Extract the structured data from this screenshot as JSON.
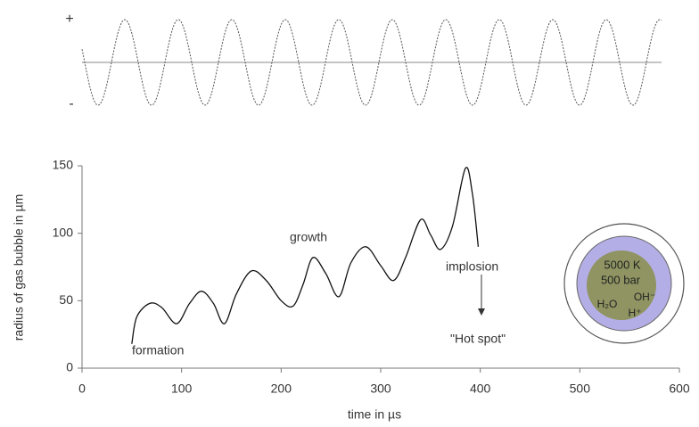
{
  "chart_data": {
    "type": "line",
    "x_label": "time in µs",
    "y_label": "radius of gas bubble in µm",
    "x": [
      50,
      55,
      68,
      80,
      95,
      108,
      120,
      132,
      143,
      155,
      170,
      185,
      200,
      212,
      222,
      232,
      245,
      258,
      270,
      285,
      300,
      313,
      325,
      340,
      350,
      360,
      372,
      385,
      392,
      398
    ],
    "values": [
      18,
      38,
      48,
      45,
      33,
      48,
      57,
      48,
      33,
      55,
      72,
      65,
      50,
      46,
      62,
      82,
      70,
      53,
      78,
      90,
      76,
      65,
      82,
      110,
      99,
      88,
      105,
      148,
      130,
      90
    ],
    "color": "#111111",
    "xlim": [
      0,
      600
    ],
    "xticks": [
      0,
      100,
      200,
      300,
      400,
      500,
      600
    ],
    "ylim": [
      0,
      150
    ],
    "yticks": [
      0,
      50,
      100,
      150
    ],
    "annotations": {
      "formation": "formation",
      "growth": "growth",
      "implosion": "implosion",
      "hot_spot": "\"Hot spot\""
    },
    "bubble": {
      "temperature": "5000 K",
      "pressure": "500 bar",
      "water": "H₂O",
      "hydroxyl": "OH⁻",
      "hydrogen": "H⁺"
    },
    "pressure_wave": {
      "plus": "+",
      "minus": "-"
    }
  }
}
